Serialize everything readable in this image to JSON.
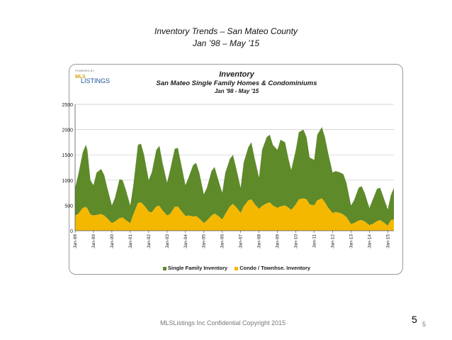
{
  "slide": {
    "title": "Inventory Trends – San Mateo County",
    "subtitle": "Jan ’98 – May ’15",
    "footer": "MLSListings Inc Confidential Copyright 2015",
    "page_number_large": "5",
    "page_number_small": "5"
  },
  "logo": {
    "small_text": "POWERED BY",
    "mls_text": "MLS",
    "listings_text": "LISTINGS"
  },
  "colors": {
    "single_family": "#5e8a2a",
    "condo": "#f5b800",
    "grid": "#c8c8c8",
    "axis": "#555555"
  },
  "chart_data": {
    "type": "area",
    "title": "Inventory",
    "subtitle": "San Mateo Single Family Homes & Condominiums",
    "date_range": "Jan '98 - May '15",
    "stacked": true,
    "ylim": [
      0,
      2500
    ],
    "yticks": [
      0,
      500,
      1000,
      1500,
      2000,
      2500
    ],
    "grid": true,
    "legend_position": "bottom",
    "x_tick_labels": [
      "Jan-98",
      "Jan-99",
      "Jan-00",
      "Jan-01",
      "Jan-02",
      "Jan-03",
      "Jan-04",
      "Jan-05",
      "Jan-06",
      "Jan-07",
      "Jan-08",
      "Jan-09",
      "Jan-10",
      "Jan-11",
      "Jan-12",
      "Jan-13",
      "Jan-14",
      "Jan-15"
    ],
    "x_start": "Jan-98",
    "x_end": "May-15",
    "series": [
      {
        "name": "Single Family Inventory",
        "dates": [
          "Jan-98",
          "Mar-98",
          "Jun-98",
          "Aug-98",
          "Sep-98",
          "Nov-98",
          "Jan-99",
          "Mar-99",
          "Jun-99",
          "Aug-99",
          "Oct-99",
          "Jan-00",
          "Mar-00",
          "Jun-00",
          "Aug-00",
          "Oct-00",
          "Jan-01",
          "Mar-01",
          "Jun-01",
          "Aug-01",
          "Oct-01",
          "Jan-02",
          "Mar-02",
          "Jun-02",
          "Aug-02",
          "Oct-02",
          "Jan-03",
          "Mar-03",
          "Jun-03",
          "Aug-03",
          "Oct-03",
          "Jan-04",
          "Mar-04",
          "Jun-04",
          "Aug-04",
          "Oct-04",
          "Jan-05",
          "Mar-05",
          "Jun-05",
          "Aug-05",
          "Oct-05",
          "Jan-06",
          "Mar-06",
          "Jun-06",
          "Aug-06",
          "Oct-06",
          "Jan-07",
          "Mar-07",
          "Jun-07",
          "Aug-07",
          "Oct-07",
          "Jan-08",
          "Mar-08",
          "Jun-08",
          "Aug-08",
          "Oct-08",
          "Jan-09",
          "Mar-09",
          "Jun-09",
          "Aug-09",
          "Oct-09",
          "Jan-10",
          "Mar-10",
          "Jun-10",
          "Aug-10",
          "Oct-10",
          "Jan-11",
          "Mar-11",
          "Jun-11",
          "Aug-11",
          "Oct-11",
          "Jan-12",
          "Mar-12",
          "Jun-12",
          "Aug-12",
          "Oct-12",
          "Jan-13",
          "Mar-13",
          "Jun-13",
          "Aug-13",
          "Oct-13",
          "Jan-14",
          "Mar-14",
          "Jun-14",
          "Aug-14",
          "Oct-14",
          "Jan-15",
          "Mar-15",
          "May-15"
        ],
        "values": [
          850,
          1100,
          1550,
          1700,
          1600,
          1000,
          900,
          1150,
          1220,
          1100,
          850,
          500,
          650,
          1020,
          1000,
          820,
          500,
          900,
          1700,
          1720,
          1500,
          1000,
          1150,
          1600,
          1680,
          1350,
          950,
          1200,
          1620,
          1640,
          1350,
          900,
          1050,
          1300,
          1340,
          1150,
          720,
          850,
          1180,
          1260,
          1050,
          750,
          1150,
          1420,
          1500,
          1250,
          850,
          1350,
          1650,
          1750,
          1450,
          1050,
          1600,
          1850,
          1900,
          1700,
          1600,
          1800,
          1750,
          1450,
          1200,
          1600,
          1950,
          2000,
          1850,
          1450,
          1400,
          1900,
          2050,
          1850,
          1550,
          1150,
          1180,
          1150,
          1120,
          950,
          500,
          600,
          850,
          880,
          740,
          450,
          600,
          830,
          850,
          680,
          420,
          700,
          850
        ]
      },
      {
        "name": "Condo  /  Townhse. Inventory",
        "dates": [
          "Jan-98",
          "Mar-98",
          "Jun-98",
          "Aug-98",
          "Sep-98",
          "Nov-98",
          "Jan-99",
          "Mar-99",
          "Jun-99",
          "Aug-99",
          "Oct-99",
          "Jan-00",
          "Mar-00",
          "Jun-00",
          "Aug-00",
          "Oct-00",
          "Jan-01",
          "Mar-01",
          "Jun-01",
          "Aug-01",
          "Oct-01",
          "Jan-02",
          "Mar-02",
          "Jun-02",
          "Aug-02",
          "Oct-02",
          "Jan-03",
          "Mar-03",
          "Jun-03",
          "Aug-03",
          "Oct-03",
          "Jan-04",
          "Mar-04",
          "Jun-04",
          "Aug-04",
          "Oct-04",
          "Jan-05",
          "Mar-05",
          "Jun-05",
          "Aug-05",
          "Oct-05",
          "Jan-06",
          "Mar-06",
          "Jun-06",
          "Aug-06",
          "Oct-06",
          "Jan-07",
          "Mar-07",
          "Jun-07",
          "Aug-07",
          "Oct-07",
          "Jan-08",
          "Mar-08",
          "Jun-08",
          "Aug-08",
          "Oct-08",
          "Jan-09",
          "Mar-09",
          "Jun-09",
          "Aug-09",
          "Oct-09",
          "Jan-10",
          "Mar-10",
          "Jun-10",
          "Aug-10",
          "Oct-10",
          "Jan-11",
          "Mar-11",
          "Jun-11",
          "Aug-11",
          "Oct-11",
          "Jan-12",
          "Mar-12",
          "Jun-12",
          "Aug-12",
          "Oct-12",
          "Jan-13",
          "Mar-13",
          "Jun-13",
          "Aug-13",
          "Oct-13",
          "Jan-14",
          "Mar-14",
          "Jun-14",
          "Aug-14",
          "Oct-14",
          "Jan-15",
          "Mar-15",
          "May-15"
        ],
        "values": [
          300,
          330,
          450,
          470,
          440,
          320,
          300,
          310,
          330,
          300,
          240,
          150,
          180,
          250,
          260,
          210,
          150,
          320,
          550,
          560,
          500,
          380,
          360,
          480,
          490,
          400,
          300,
          330,
          470,
          480,
          400,
          290,
          300,
          280,
          290,
          240,
          150,
          200,
          300,
          340,
          300,
          220,
          330,
          480,
          530,
          470,
          350,
          480,
          600,
          620,
          530,
          430,
          490,
          540,
          560,
          500,
          450,
          480,
          500,
          460,
          410,
          520,
          620,
          640,
          620,
          520,
          500,
          600,
          640,
          560,
          460,
          350,
          370,
          350,
          320,
          270,
          130,
          150,
          200,
          210,
          180,
          110,
          130,
          190,
          210,
          170,
          100,
          210,
          220
        ]
      }
    ]
  }
}
